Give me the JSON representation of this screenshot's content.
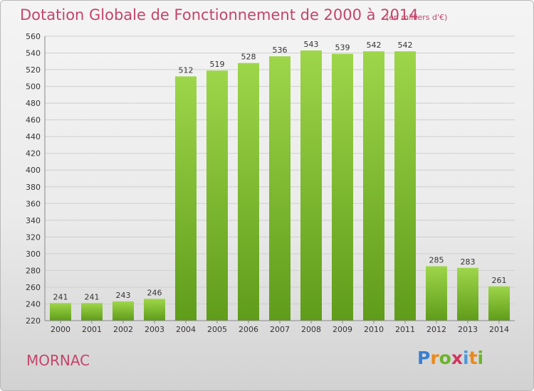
{
  "title": "Dotation Globale de Fonctionnement de 2000 à 2014",
  "unit_note": "(en milliers d'€)",
  "commune": "MORNAC",
  "logo": {
    "text": "Proxiti",
    "letter_colors": [
      "#3a7fd0",
      "#e98a1e",
      "#6bb42a",
      "#d1365e",
      "#4f9ad8",
      "#e98a1e",
      "#6bb42a"
    ]
  },
  "colors": {
    "title": "#c4456b",
    "bar_light": "#9ed64a",
    "bar_dark": "#5f9c1a",
    "grid": "#cfcfcf",
    "axis_text": "#333333"
  },
  "chart_data": {
    "type": "bar",
    "title": "Dotation Globale de Fonctionnement de 2000 à 2014",
    "subtitle": "(en milliers d'€)",
    "xlabel": "",
    "ylabel": "",
    "categories": [
      "2000",
      "2001",
      "2002",
      "2003",
      "2004",
      "2005",
      "2006",
      "2007",
      "2008",
      "2009",
      "2010",
      "2011",
      "2012",
      "2013",
      "2014"
    ],
    "values": [
      241,
      241,
      243,
      246,
      512,
      519,
      528,
      536,
      543,
      539,
      542,
      542,
      285,
      283,
      261
    ],
    "ylim": [
      220,
      560
    ],
    "yticks": [
      220,
      240,
      260,
      280,
      300,
      320,
      340,
      360,
      380,
      400,
      420,
      440,
      460,
      480,
      500,
      520,
      540,
      560
    ],
    "grid": true,
    "legend": "none"
  }
}
